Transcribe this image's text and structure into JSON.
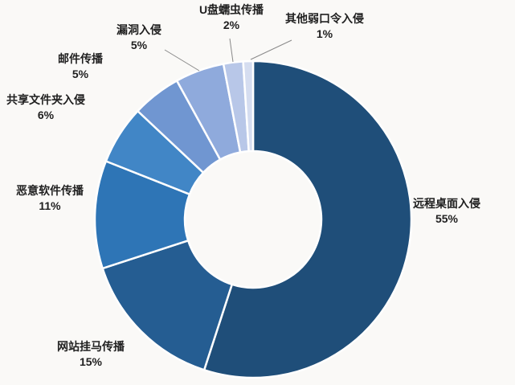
{
  "chart_data": {
    "type": "pie",
    "subtype": "donut",
    "title": "",
    "legend": "none",
    "direction": "clockwise",
    "start_angle_deg": 0,
    "inner_radius_ratio": 0.43,
    "categories": [
      "远程桌面入侵",
      "网站挂马传播",
      "恶意软件传播",
      "共享文件夹入侵",
      "邮件传播",
      "漏洞入侵",
      "U盘蠕虫传播",
      "其他弱口令入侵"
    ],
    "values": [
      55,
      15,
      11,
      6,
      5,
      5,
      2,
      1
    ],
    "value_labels": [
      "55%",
      "15%",
      "11%",
      "6%",
      "5%",
      "5%",
      "2%",
      "1%"
    ],
    "colors": [
      "#1f4e79",
      "#255d92",
      "#2e75b6",
      "#4186c6",
      "#7096d1",
      "#8faadc",
      "#b8c7e8",
      "#d5ddf0"
    ],
    "slice_gap_color": "#ffffff",
    "leader_line_color": "#8a8a8a",
    "background_color": "#faf9f7",
    "label_text_color": "#1f1f1f"
  }
}
